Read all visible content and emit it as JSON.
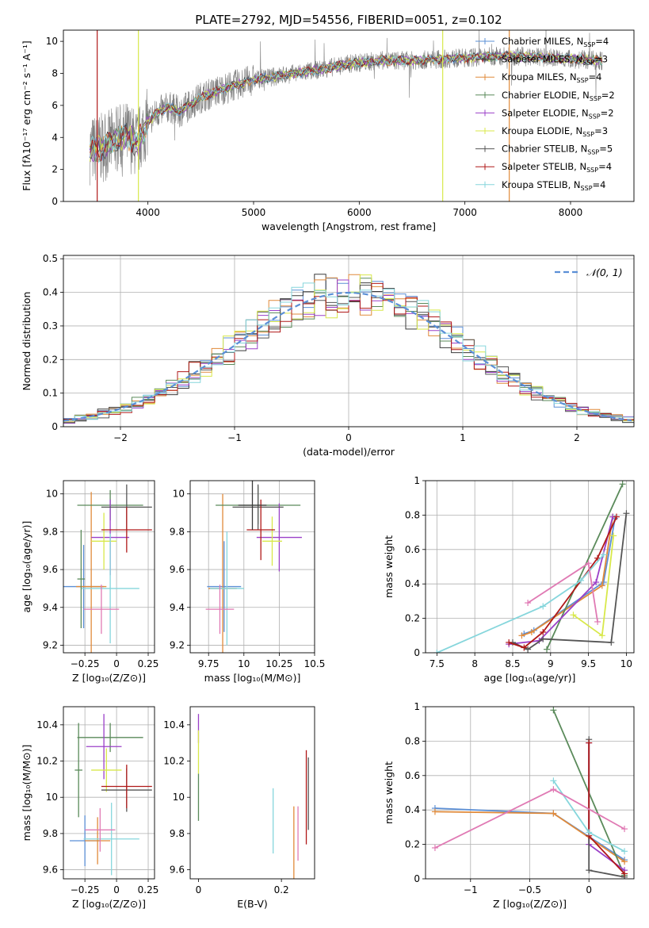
{
  "figure": {
    "title": "PLATE=2792, MJD=54556, FIBERID=0051, z=0.102"
  },
  "series_colors": {
    "chabrier_miles": "#5b8fd6",
    "salpeter_miles": "#3a3a3a",
    "kroupa_miles": "#e08a3a",
    "chabrier_elodie": "#5a8a5a",
    "salpeter_elodie": "#9b40c8",
    "kroupa_elodie": "#d8e84a",
    "chabrier_stelib": "#555555",
    "salpeter_stelib": "#b01818",
    "kroupa_stelib": "#86d6dc",
    "pink": "#e07ab4",
    "data": "#808080",
    "normal": "#5b8fd6"
  },
  "chart_data": [
    {
      "id": "spectrum",
      "type": "line",
      "title": "PLATE=2792, MJD=54556, FIBERID=0051, z=0.102",
      "xlabel": "wavelength [Angstrom, rest frame]",
      "ylabel": "Flux [fλ10⁻¹⁷ erg cm⁻² s⁻¹ A⁻¹]",
      "xlim": [
        3200,
        8600
      ],
      "ylim": [
        0,
        10.7
      ],
      "xticks": [
        4000,
        5000,
        6000,
        7000,
        8000
      ],
      "yticks": [
        0,
        2,
        4,
        6,
        8,
        10
      ],
      "legend_position": "upper-right",
      "legend": [
        {
          "label": "Chabrier MILES, N",
          "sub": "SSP",
          "suffix": "=4",
          "color": "#5b8fd6"
        },
        {
          "label": "Salpeter MILES, N",
          "sub": "SSP",
          "suffix": "=3",
          "color": "#3a3a3a"
        },
        {
          "label": "Kroupa MILES, N",
          "sub": "SSP",
          "suffix": "=4",
          "color": "#e08a3a"
        },
        {
          "label": "Chabrier ELODIE, N",
          "sub": "SSP",
          "suffix": "=2",
          "color": "#5a8a5a"
        },
        {
          "label": "Salpeter ELODIE, N",
          "sub": "SSP",
          "suffix": "=2",
          "color": "#9b40c8"
        },
        {
          "label": "Kroupa ELODIE, N",
          "sub": "SSP",
          "suffix": "=3",
          "color": "#d8e84a"
        },
        {
          "label": "Chabrier STELIB, N",
          "sub": "SSP",
          "suffix": "=5",
          "color": "#555555"
        },
        {
          "label": "Salpeter STELIB, N",
          "sub": "SSP",
          "suffix": "=4",
          "color": "#b01818"
        },
        {
          "label": "Kroupa STELIB, N",
          "sub": "SSP",
          "suffix": "=4",
          "color": "#86d6dc"
        }
      ],
      "continuum": {
        "x": [
          3450,
          3600,
          3700,
          3800,
          3900,
          4000,
          4100,
          4200,
          4300,
          4500,
          4700,
          5000,
          5300,
          5600,
          5900,
          6200,
          6500,
          6800,
          7100,
          7400,
          7700,
          8000,
          8300
        ],
        "y": [
          3.2,
          3.4,
          3.9,
          4.1,
          3.6,
          5.0,
          5.6,
          5.9,
          5.6,
          6.5,
          7.0,
          7.6,
          7.9,
          8.2,
          8.6,
          8.8,
          8.8,
          8.9,
          9.0,
          9.1,
          9.0,
          8.9,
          8.8
        ]
      },
      "spikes": [
        {
          "x": 3520,
          "color": "#b01818"
        },
        {
          "x": 3910,
          "color": "#d8e84a"
        },
        {
          "x": 6790,
          "color": "#d8e84a"
        },
        {
          "x": 7420,
          "color": "#e08a3a"
        }
      ]
    },
    {
      "id": "residuals",
      "type": "histogram",
      "xlabel": "(data-model)/error",
      "ylabel": "Normed distribution",
      "xlim": [
        -2.5,
        2.5
      ],
      "ylim": [
        0,
        0.51
      ],
      "xticks": [
        -2,
        -1,
        0,
        1,
        2
      ],
      "yticks": [
        0.0,
        0.1,
        0.2,
        0.3,
        0.4,
        0.5
      ],
      "grid": true,
      "legend_position": "upper-right",
      "legend": [
        {
          "label": "𝒩(0, 1)",
          "color": "#5b8fd6",
          "style": "dashed"
        }
      ],
      "bin_width": 0.1
    },
    {
      "id": "age_vs_z",
      "type": "scatter",
      "xlabel": "Z [log₁₀(Z/Z⊙)]",
      "ylabel": "age  [log₁₀(age/yr)]",
      "xlim": [
        -0.42,
        0.3
      ],
      "ylim": [
        9.16,
        10.07
      ],
      "xticks": [
        -0.25,
        0.0,
        0.25
      ],
      "yticks": [
        9.2,
        9.4,
        9.6,
        9.8,
        10.0
      ],
      "grid": true,
      "points": [
        {
          "x": -0.26,
          "y": 9.51,
          "xerr": 0.16,
          "yerr": 0.22,
          "color": "#5b8fd6"
        },
        {
          "x": -0.2,
          "y": 9.51,
          "xerr": 0.12,
          "yerr": 0.5,
          "color": "#e08a3a"
        },
        {
          "x": -0.05,
          "y": 9.94,
          "xerr": 0.26,
          "yerr": 0.08,
          "color": "#5a8a5a"
        },
        {
          "x": -0.05,
          "y": 9.77,
          "xerr": 0.15,
          "yerr": 0.2,
          "color": "#9b40c8"
        },
        {
          "x": -0.1,
          "y": 9.75,
          "xerr": 0.1,
          "yerr": 0.15,
          "color": "#d8e84a"
        },
        {
          "x": 0.08,
          "y": 9.93,
          "xerr": 0.2,
          "yerr": 0.12,
          "color": "#555555"
        },
        {
          "x": 0.08,
          "y": 9.81,
          "xerr": 0.2,
          "yerr": 0.12,
          "color": "#b01818"
        },
        {
          "x": -0.05,
          "y": 9.5,
          "xerr": 0.23,
          "yerr": 0.29,
          "color": "#86d6dc"
        },
        {
          "x": -0.12,
          "y": 9.39,
          "xerr": 0.14,
          "yerr": 0.13,
          "color": "#e07ab4"
        },
        {
          "x": -0.28,
          "y": 9.55,
          "xerr": 0.03,
          "yerr": 0.26,
          "color": "#5a8a5a"
        }
      ]
    },
    {
      "id": "age_vs_mass",
      "type": "scatter",
      "xlabel": "mass [log₁₀(M/M⊙)]",
      "ylabel": "",
      "xlim": [
        9.62,
        10.5
      ],
      "ylim": [
        9.16,
        10.07
      ],
      "xticks": [
        9.75,
        10.0,
        10.25,
        10.5
      ],
      "yticks": [
        9.2,
        9.4,
        9.6,
        9.8,
        10.0
      ],
      "grid": true,
      "points": [
        {
          "x": 9.86,
          "y": 9.51,
          "xerr": 0.12,
          "yerr": 0.24,
          "color": "#5b8fd6"
        },
        {
          "x": 9.85,
          "y": 9.5,
          "xerr": 0.1,
          "yerr": 0.5,
          "color": "#e08a3a"
        },
        {
          "x": 10.1,
          "y": 9.94,
          "xerr": 0.3,
          "yerr": 0.1,
          "color": "#5a8a5a"
        },
        {
          "x": 10.25,
          "y": 9.77,
          "xerr": 0.16,
          "yerr": 0.18,
          "color": "#9b40c8"
        },
        {
          "x": 10.2,
          "y": 9.75,
          "xerr": 0.07,
          "yerr": 0.13,
          "color": "#d8e84a"
        },
        {
          "x": 10.1,
          "y": 9.93,
          "xerr": 0.18,
          "yerr": 0.12,
          "color": "#555555"
        },
        {
          "x": 10.12,
          "y": 9.81,
          "xerr": 0.1,
          "yerr": 0.16,
          "color": "#b01818"
        },
        {
          "x": 9.88,
          "y": 9.5,
          "xerr": 0.12,
          "yerr": 0.3,
          "color": "#86d6dc"
        },
        {
          "x": 9.83,
          "y": 9.39,
          "xerr": 0.1,
          "yerr": 0.13,
          "color": "#e07ab4"
        },
        {
          "x": 10.06,
          "y": 9.94,
          "xerr": 0.1,
          "yerr": 0.13,
          "color": "#3a3a3a"
        }
      ]
    },
    {
      "id": "mw_vs_age",
      "type": "line",
      "xlabel": "age  [log₁₀(age/yr)]",
      "ylabel": "mass weight",
      "xlim": [
        7.35,
        10.1
      ],
      "ylim": [
        0,
        1.0
      ],
      "xticks": [
        7.5,
        8.0,
        8.5,
        9.0,
        9.5,
        10.0
      ],
      "yticks": [
        0.0,
        0.2,
        0.4,
        0.6,
        0.8,
        1.0
      ],
      "grid": true,
      "series": [
        {
          "color": "#5b8fd6",
          "x": [
            8.65,
            8.78,
            9.7,
            9.85
          ],
          "y": [
            0.11,
            0.13,
            0.41,
            0.78
          ]
        },
        {
          "color": "#e08a3a",
          "x": [
            8.62,
            8.75,
            9.68,
            9.82
          ],
          "y": [
            0.1,
            0.12,
            0.39,
            0.79
          ]
        },
        {
          "color": "#5a8a5a",
          "x": [
            8.95,
            9.95
          ],
          "y": [
            0.02,
            0.98
          ]
        },
        {
          "color": "#9b40c8",
          "x": [
            8.45,
            8.85,
            9.6,
            9.82
          ],
          "y": [
            0.05,
            0.07,
            0.41,
            0.79
          ]
        },
        {
          "color": "#d8e84a",
          "x": [
            9.3,
            9.68,
            9.83
          ],
          "y": [
            0.22,
            0.1,
            0.68
          ]
        },
        {
          "color": "#555555",
          "x": [
            8.5,
            8.7,
            8.9,
            9.8,
            10.0
          ],
          "y": [
            0.06,
            0.02,
            0.08,
            0.06,
            0.81
          ]
        },
        {
          "color": "#b01818",
          "x": [
            8.45,
            8.65,
            8.9,
            9.62,
            9.87
          ],
          "y": [
            0.06,
            0.03,
            0.12,
            0.55,
            0.79
          ]
        },
        {
          "color": "#86d6dc",
          "x": [
            7.5,
            8.9,
            9.4,
            9.7
          ],
          "y": [
            0.0,
            0.27,
            0.42,
            0.57
          ]
        },
        {
          "color": "#e07ab4",
          "x": [
            8.7,
            9.5,
            9.62
          ],
          "y": [
            0.29,
            0.52,
            0.18
          ]
        }
      ]
    },
    {
      "id": "mass_vs_z",
      "type": "scatter",
      "xlabel": "Z [log₁₀(Z/Z⊙)]",
      "ylabel": "mass [log₁₀(M/M⊙)]",
      "xlim": [
        -0.42,
        0.3
      ],
      "ylim": [
        9.55,
        10.5
      ],
      "xticks": [
        -0.25,
        0.0,
        0.25
      ],
      "yticks": [
        9.6,
        9.8,
        10.0,
        10.2,
        10.4
      ],
      "grid": true,
      "points": [
        {
          "x": -0.25,
          "y": 9.76,
          "xerr": 0.12,
          "yerr": 0.14,
          "color": "#5b8fd6"
        },
        {
          "x": -0.15,
          "y": 9.76,
          "xerr": 0.1,
          "yerr": 0.13,
          "color": "#e08a3a"
        },
        {
          "x": -0.05,
          "y": 10.33,
          "xerr": 0.26,
          "yerr": 0.08,
          "color": "#5a8a5a"
        },
        {
          "x": -0.1,
          "y": 10.28,
          "xerr": 0.14,
          "yerr": 0.18,
          "color": "#9b40c8"
        },
        {
          "x": -0.08,
          "y": 10.15,
          "xerr": 0.12,
          "yerr": 0.12,
          "color": "#d8e84a"
        },
        {
          "x": 0.08,
          "y": 10.04,
          "xerr": 0.2,
          "yerr": 0.12,
          "color": "#555555"
        },
        {
          "x": 0.08,
          "y": 10.06,
          "xerr": 0.2,
          "yerr": 0.12,
          "color": "#b01818"
        },
        {
          "x": -0.04,
          "y": 9.77,
          "xerr": 0.22,
          "yerr": 0.2,
          "color": "#86d6dc"
        },
        {
          "x": -0.13,
          "y": 9.82,
          "xerr": 0.12,
          "yerr": 0.12,
          "color": "#e07ab4"
        },
        {
          "x": -0.3,
          "y": 10.15,
          "xerr": 0.03,
          "yerr": 0.26,
          "color": "#5a8a5a"
        }
      ]
    },
    {
      "id": "mass_vs_ebv",
      "type": "scatter",
      "xlabel": "E(B-V)",
      "ylabel": "",
      "xlim": [
        -0.02,
        0.28
      ],
      "ylim": [
        9.55,
        10.5
      ],
      "xticks": [
        0.0,
        0.2
      ],
      "yticks": [
        9.6,
        9.8,
        10.0,
        10.2,
        10.4
      ],
      "grid": false,
      "points": [
        {
          "x": 0.0,
          "y": 10.38,
          "xerr": 0,
          "yerr": 0.08,
          "color": "#9b40c8"
        },
        {
          "x": 0.0,
          "y": 10.25,
          "xerr": 0,
          "yerr": 0.12,
          "color": "#d8e84a"
        },
        {
          "x": 0.0,
          "y": 10.0,
          "xerr": 0,
          "yerr": 0.13,
          "color": "#5a8a5a"
        },
        {
          "x": 0.18,
          "y": 9.87,
          "xerr": 0,
          "yerr": 0.18,
          "color": "#86d6dc"
        },
        {
          "x": 0.23,
          "y": 9.75,
          "xerr": 0,
          "yerr": 0.2,
          "color": "#e08a3a"
        },
        {
          "x": 0.24,
          "y": 9.8,
          "xerr": 0,
          "yerr": 0.15,
          "color": "#e07ab4"
        },
        {
          "x": 0.26,
          "y": 10.0,
          "xerr": 0,
          "yerr": 0.26,
          "color": "#b01818"
        },
        {
          "x": 0.265,
          "y": 10.02,
          "xerr": 0,
          "yerr": 0.2,
          "color": "#555555"
        }
      ]
    },
    {
      "id": "mw_vs_z",
      "type": "line",
      "xlabel": "Z [log₁₀(Z/Z⊙)]",
      "ylabel": "mass weight",
      "xlim": [
        -1.38,
        0.38
      ],
      "ylim": [
        0,
        1.0
      ],
      "xticks": [
        -1.0,
        -0.5,
        0.0
      ],
      "yticks": [
        0.0,
        0.2,
        0.4,
        0.6,
        0.8,
        1.0
      ],
      "grid": true,
      "series": [
        {
          "color": "#5b8fd6",
          "x": [
            -1.3,
            -0.3,
            0.3
          ],
          "y": [
            0.41,
            0.38,
            0.11
          ]
        },
        {
          "color": "#e08a3a",
          "x": [
            -1.3,
            -0.3,
            0.3
          ],
          "y": [
            0.39,
            0.38,
            0.1
          ]
        },
        {
          "color": "#5a8a5a",
          "x": [
            -0.3,
            0.3
          ],
          "y": [
            0.98,
            0.02
          ]
        },
        {
          "color": "#9b40c8",
          "x": [
            0.0,
            0.0,
            0.3
          ],
          "y": [
            0.79,
            0.2,
            0.05
          ]
        },
        {
          "color": "#555555",
          "x": [
            0.0,
            0.0,
            0.3
          ],
          "y": [
            0.81,
            0.05,
            0.01
          ]
        },
        {
          "color": "#b01818",
          "x": [
            0.0,
            0.0,
            0.3
          ],
          "y": [
            0.79,
            0.25,
            0.03
          ]
        },
        {
          "color": "#86d6dc",
          "x": [
            -0.3,
            0.0,
            0.3
          ],
          "y": [
            0.57,
            0.27,
            0.16
          ]
        },
        {
          "color": "#e07ab4",
          "x": [
            -1.3,
            -0.3,
            0.3
          ],
          "y": [
            0.18,
            0.52,
            0.29
          ]
        }
      ]
    }
  ]
}
